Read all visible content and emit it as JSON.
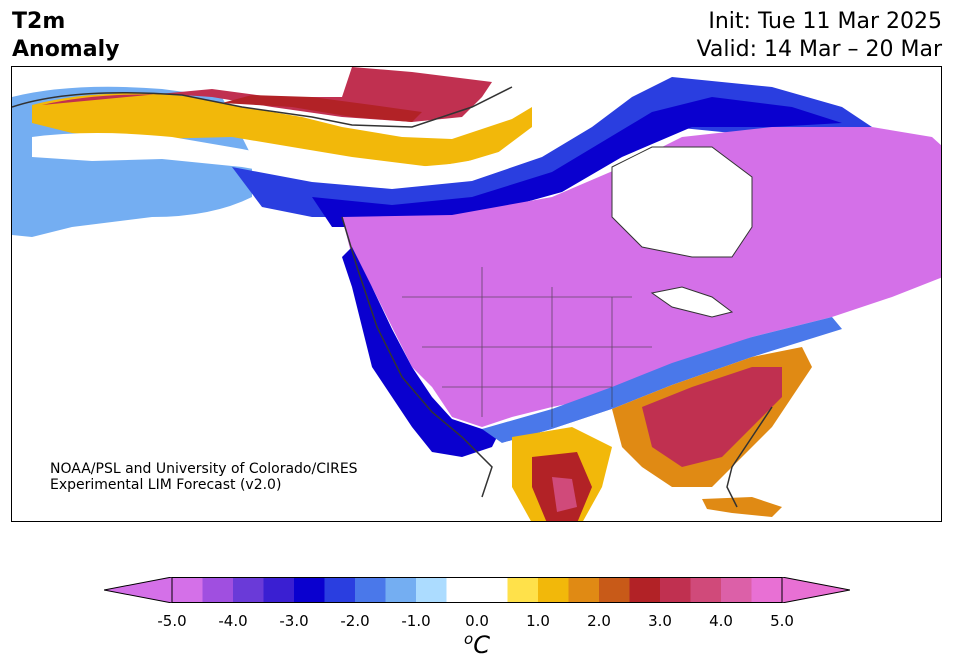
{
  "title": {
    "line1": "T2m",
    "line2": "Anomaly"
  },
  "dates": {
    "init": "Init: Tue 11 Mar 2025",
    "valid": "Valid: 14 Mar – 20 Mar"
  },
  "credit": {
    "line1": "NOAA/PSL and University of Colorado/CIRES",
    "line2": "Experimental LIM Forecast (v2.0)"
  },
  "colorbar": {
    "ticks": [
      "-5.0",
      "-4.0",
      "-3.0",
      "-2.0",
      "-1.0",
      "0.0",
      "1.0",
      "2.0",
      "3.0",
      "4.0",
      "5.0"
    ],
    "unit_base": "C",
    "unit_sup": "o",
    "colors": [
      "#d470e8",
      "#a04fe0",
      "#6a3ad8",
      "#3a1fd2",
      "#0a00cf",
      "#2a3ee0",
      "#4a78ea",
      "#74aef2",
      "#acdcff",
      "#ffffff",
      "#ffffff",
      "#ffe14a",
      "#f2b80a",
      "#e08a14",
      "#c85a18",
      "#b22226",
      "#c03050",
      "#d04a7a",
      "#dc60a8",
      "#e870d4"
    ],
    "min_color": "#d470e8",
    "max_color": "#e870d4"
  }
}
